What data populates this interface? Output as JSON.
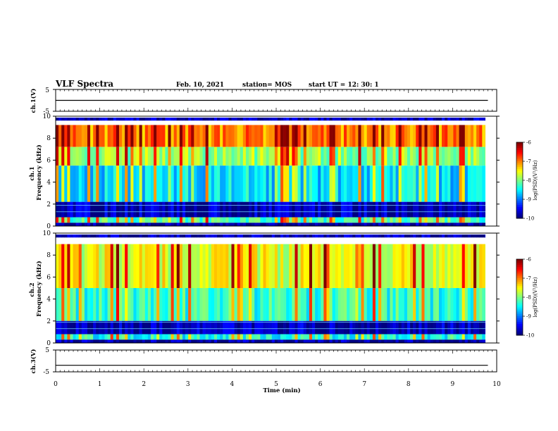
{
  "header": {
    "title": "VLF Spectra",
    "date": "Feb. 10, 2021",
    "station": "station= MOS",
    "start": "start  UT  =    12: 30: 1"
  },
  "chart_data": [
    {
      "type": "line",
      "ylabel": "ch.1(V)",
      "ylim": [
        -5,
        5
      ],
      "yticks": [
        "5",
        "-5"
      ],
      "series": [
        {
          "x": [
            0,
            9.8
          ],
          "y": [
            0,
            0
          ]
        }
      ]
    },
    {
      "type": "heatmap",
      "ylabel": "ch.1\nFrequency (kHz)",
      "xlim": [
        0,
        10
      ],
      "ylim": [
        0,
        10
      ],
      "yticks": [
        "0",
        "2",
        "4",
        "6",
        "8",
        "10"
      ],
      "data_extent_min": 9.8,
      "colorbar": {
        "label": "log(PSD)(V²/Hz)",
        "range": [
          -10,
          -6
        ],
        "ticks": [
          "-6",
          "-7",
          "-8",
          "-9",
          "-10"
        ]
      },
      "bands": [
        {
          "from": 9.6,
          "to": 10,
          "level": -9.8
        },
        {
          "from": 7.2,
          "to": 9.2,
          "level": -7.0
        },
        {
          "from": 5.5,
          "to": 7.2,
          "level": -7.9
        },
        {
          "from": 2.2,
          "to": 5.5,
          "level": -8.6
        },
        {
          "from": 0.8,
          "to": 2.2,
          "level": -9.8
        },
        {
          "from": 0.3,
          "to": 0.8,
          "level": -8.2
        },
        {
          "from": 0,
          "to": 0.3,
          "level": -9.9
        }
      ]
    },
    {
      "type": "heatmap",
      "ylabel": "ch.2\nFrequency (kHz)",
      "xlim": [
        0,
        10
      ],
      "ylim": [
        0,
        10
      ],
      "yticks": [
        "0",
        "2",
        "4",
        "6",
        "8",
        "10"
      ],
      "data_extent_min": 9.8,
      "colorbar": {
        "label": "log(PSD)(V²/Hz)",
        "range": [
          -10,
          -6
        ],
        "ticks": [
          "-6",
          "-7",
          "-8",
          "-9",
          "-10"
        ]
      },
      "bands": [
        {
          "from": 9.6,
          "to": 10,
          "level": -9.8
        },
        {
          "from": 5.0,
          "to": 9.0,
          "level": -7.6
        },
        {
          "from": 2.0,
          "to": 5.0,
          "level": -8.3
        },
        {
          "from": 0.8,
          "to": 2.0,
          "level": -9.8
        },
        {
          "from": 0.3,
          "to": 0.8,
          "level": -8.4
        },
        {
          "from": 0,
          "to": 0.3,
          "level": -9.9
        }
      ]
    },
    {
      "type": "line",
      "ylabel": "ch.3(V)",
      "ylim": [
        -5,
        5
      ],
      "yticks": [
        "5",
        "-5"
      ],
      "xlabel": "Time  (min)",
      "xticks": [
        "0",
        "1",
        "2",
        "3",
        "4",
        "5",
        "6",
        "7",
        "8",
        "9",
        "10"
      ],
      "series": [
        {
          "x": [
            0,
            9.8
          ],
          "y": [
            -2,
            -2
          ]
        }
      ]
    }
  ]
}
